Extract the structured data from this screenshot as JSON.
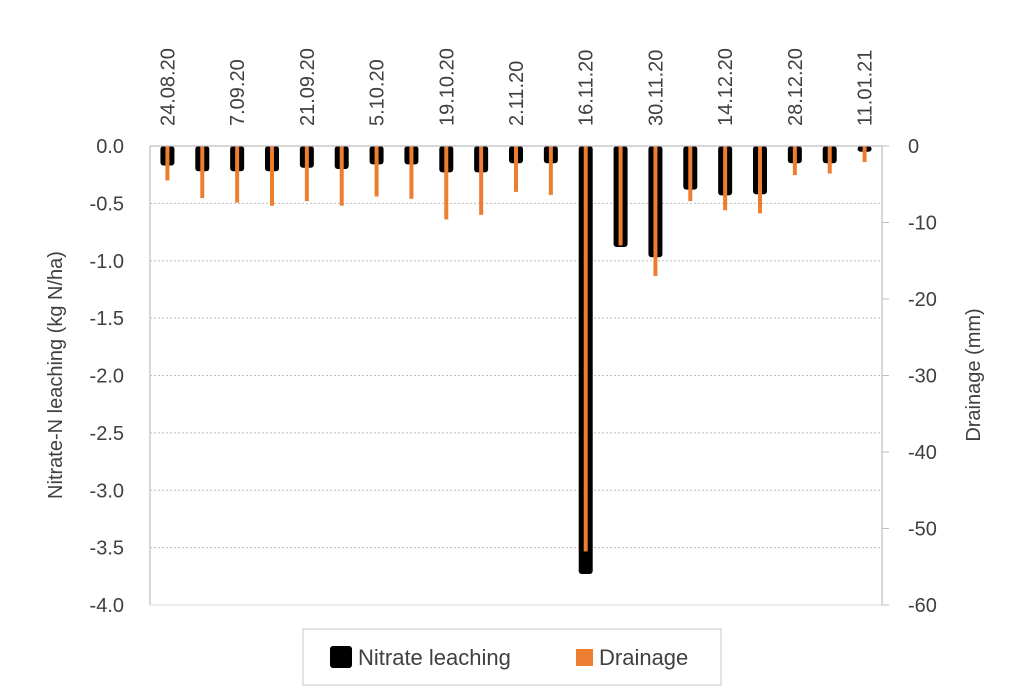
{
  "chart_data": {
    "type": "bar",
    "categories": [
      "24.08.20",
      "31.08.20",
      "7.09.20",
      "14.09.20",
      "21.09.20",
      "28.09.20",
      "5.10.20",
      "12.10.20",
      "19.10.20",
      "26.10.20",
      "2.11.20",
      "9.11.20",
      "16.11.20",
      "23.11.20",
      "30.11.20",
      "7.12.20",
      "14.12.20",
      "21.12.20",
      "28.12.20",
      "4.01.21",
      "11.01.21"
    ],
    "x_tick_labels": [
      "24.08.20",
      "7.09.20",
      "21.09.20",
      "5.10.20",
      "19.10.20",
      "2.11.20",
      "16.11.20",
      "30.11.20",
      "14.12.20",
      "28.12.20",
      "11.01.21"
    ],
    "x_tick_every": 2,
    "series": [
      {
        "name": "Nitrate leaching",
        "axis": "left",
        "color": "#000000",
        "values": [
          -0.17,
          -0.22,
          -0.22,
          -0.22,
          -0.19,
          -0.2,
          -0.16,
          -0.16,
          -0.23,
          -0.23,
          -0.15,
          -0.15,
          -3.73,
          -0.88,
          -0.97,
          -0.38,
          -0.43,
          -0.42,
          -0.15,
          -0.15,
          -0.05
        ]
      },
      {
        "name": "Drainage",
        "axis": "right",
        "color": "#ed7d31",
        "values": [
          -4.5,
          -6.8,
          -7.4,
          -7.8,
          -7.2,
          -7.8,
          -6.6,
          -6.9,
          -9.6,
          -9.0,
          -6.0,
          -6.4,
          -53,
          -13,
          -17,
          -7.2,
          -8.4,
          -8.8,
          -3.8,
          -3.6,
          -2.1
        ]
      }
    ],
    "ylabel": "Nitrate-N leaching (kg N/ha)",
    "ylabel_right": "Drainage (mm)",
    "ylim": [
      -4.0,
      0.0
    ],
    "yticks": [
      "0.0",
      "-0.5",
      "-1.0",
      "-1.5",
      "-2.0",
      "-2.5",
      "-3.0",
      "-3.5",
      "-4.0"
    ],
    "y2lim": [
      -60,
      0
    ],
    "y2ticks": [
      "0",
      "-10",
      "-20",
      "-30",
      "-40",
      "-50",
      "-60"
    ],
    "grid": true,
    "legend_position": "bottom"
  }
}
